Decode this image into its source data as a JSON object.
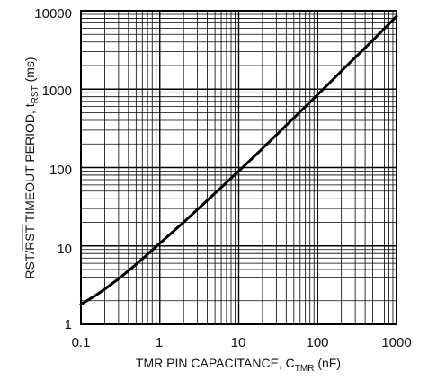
{
  "chart_data": {
    "type": "line",
    "x_scale": "log",
    "y_scale": "log",
    "xlim": [
      0.1,
      1000
    ],
    "ylim": [
      1,
      10000
    ],
    "grid": true,
    "x_ticks": [
      "0.1",
      "1",
      "10",
      "100",
      "1000"
    ],
    "y_ticks": [
      "1",
      "10",
      "100",
      "1000",
      "10000"
    ],
    "xlabel": {
      "main": "TMR PIN CAPACITANCE, C",
      "sub": "TMR",
      "tail": " (nF)"
    },
    "ylabel": {
      "pre": "RST/",
      "overbar": "RST",
      "main": " TIMEOUT PERIOD, t",
      "sub": "RST",
      "tail": " (ms)"
    },
    "series": [
      {
        "x": [
          0.1,
          0.15,
          0.2,
          0.3,
          0.5,
          0.7,
          1,
          2,
          5,
          10,
          20,
          50,
          100,
          200,
          500,
          1000
        ],
        "y": [
          1.8,
          2.3,
          2.8,
          3.8,
          5.8,
          7.8,
          10.8,
          20,
          47,
          90,
          175,
          430,
          850,
          1700,
          4200,
          8500
        ]
      }
    ],
    "colors": {
      "line": "#000000",
      "grid": "#000000"
    }
  }
}
